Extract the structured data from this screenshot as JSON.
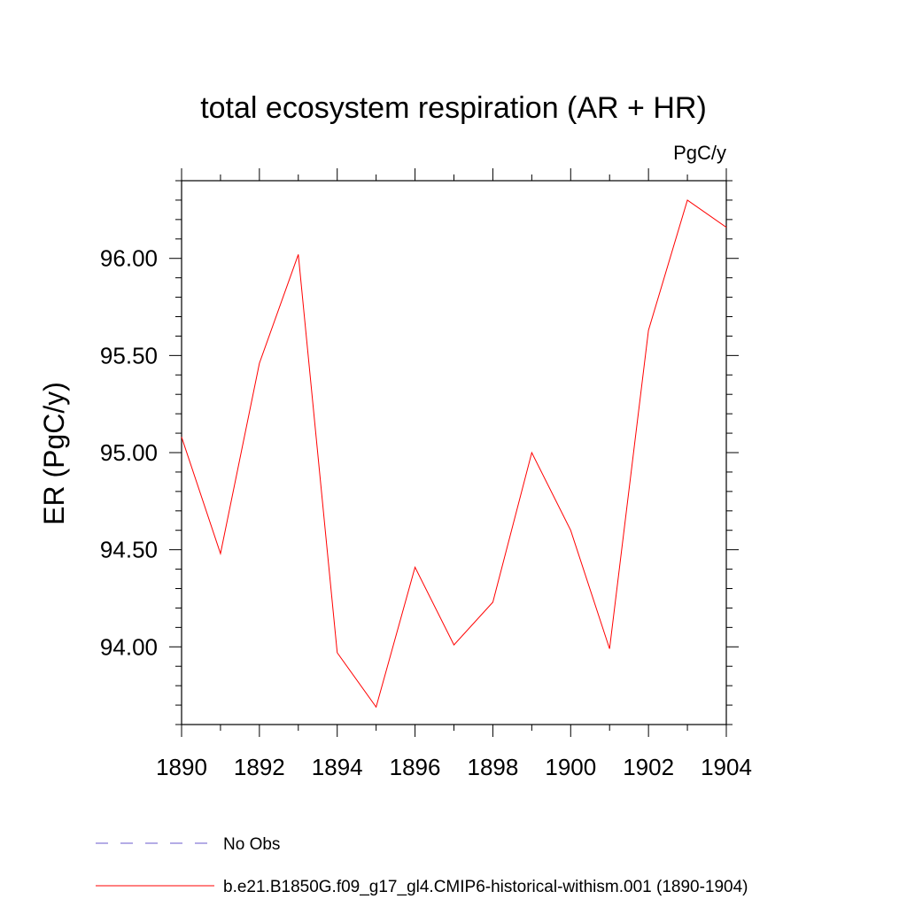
{
  "chart_data": {
    "type": "line",
    "title": "total ecosystem respiration (AR + HR)",
    "units_label": "PgC/y",
    "xlabel": "",
    "ylabel": "ER  (PgC/y)",
    "xlim": [
      1890,
      1904
    ],
    "ylim": [
      93.6,
      96.4
    ],
    "x_ticks": [
      1890,
      1892,
      1894,
      1896,
      1898,
      1900,
      1902,
      1904
    ],
    "x_tick_labels": [
      "1890",
      "1892",
      "1894",
      "1896",
      "1898",
      "1900",
      "1902",
      "1904"
    ],
    "y_ticks": [
      94.0,
      94.5,
      95.0,
      95.5,
      96.0
    ],
    "y_tick_labels": [
      "94.00",
      "94.50",
      "95.00",
      "95.50",
      "96.00"
    ],
    "grid": false,
    "legend_position": "bottom-left",
    "series": [
      {
        "name": "No Obs",
        "color": "#6a5acd",
        "style": "dashed",
        "x": [],
        "y": []
      },
      {
        "name": "b.e21.B1850G.f09_g17_gl4.CMIP6-historical-withism.001 (1890-1904)",
        "color": "#ff0000",
        "style": "solid",
        "x": [
          1890,
          1891,
          1892,
          1893,
          1894,
          1895,
          1896,
          1897,
          1898,
          1899,
          1900,
          1901,
          1902,
          1903,
          1904
        ],
        "y": [
          95.08,
          94.48,
          95.46,
          96.02,
          93.97,
          93.69,
          94.41,
          94.01,
          94.23,
          95.0,
          94.6,
          93.99,
          95.63,
          96.3,
          96.16
        ]
      }
    ]
  }
}
